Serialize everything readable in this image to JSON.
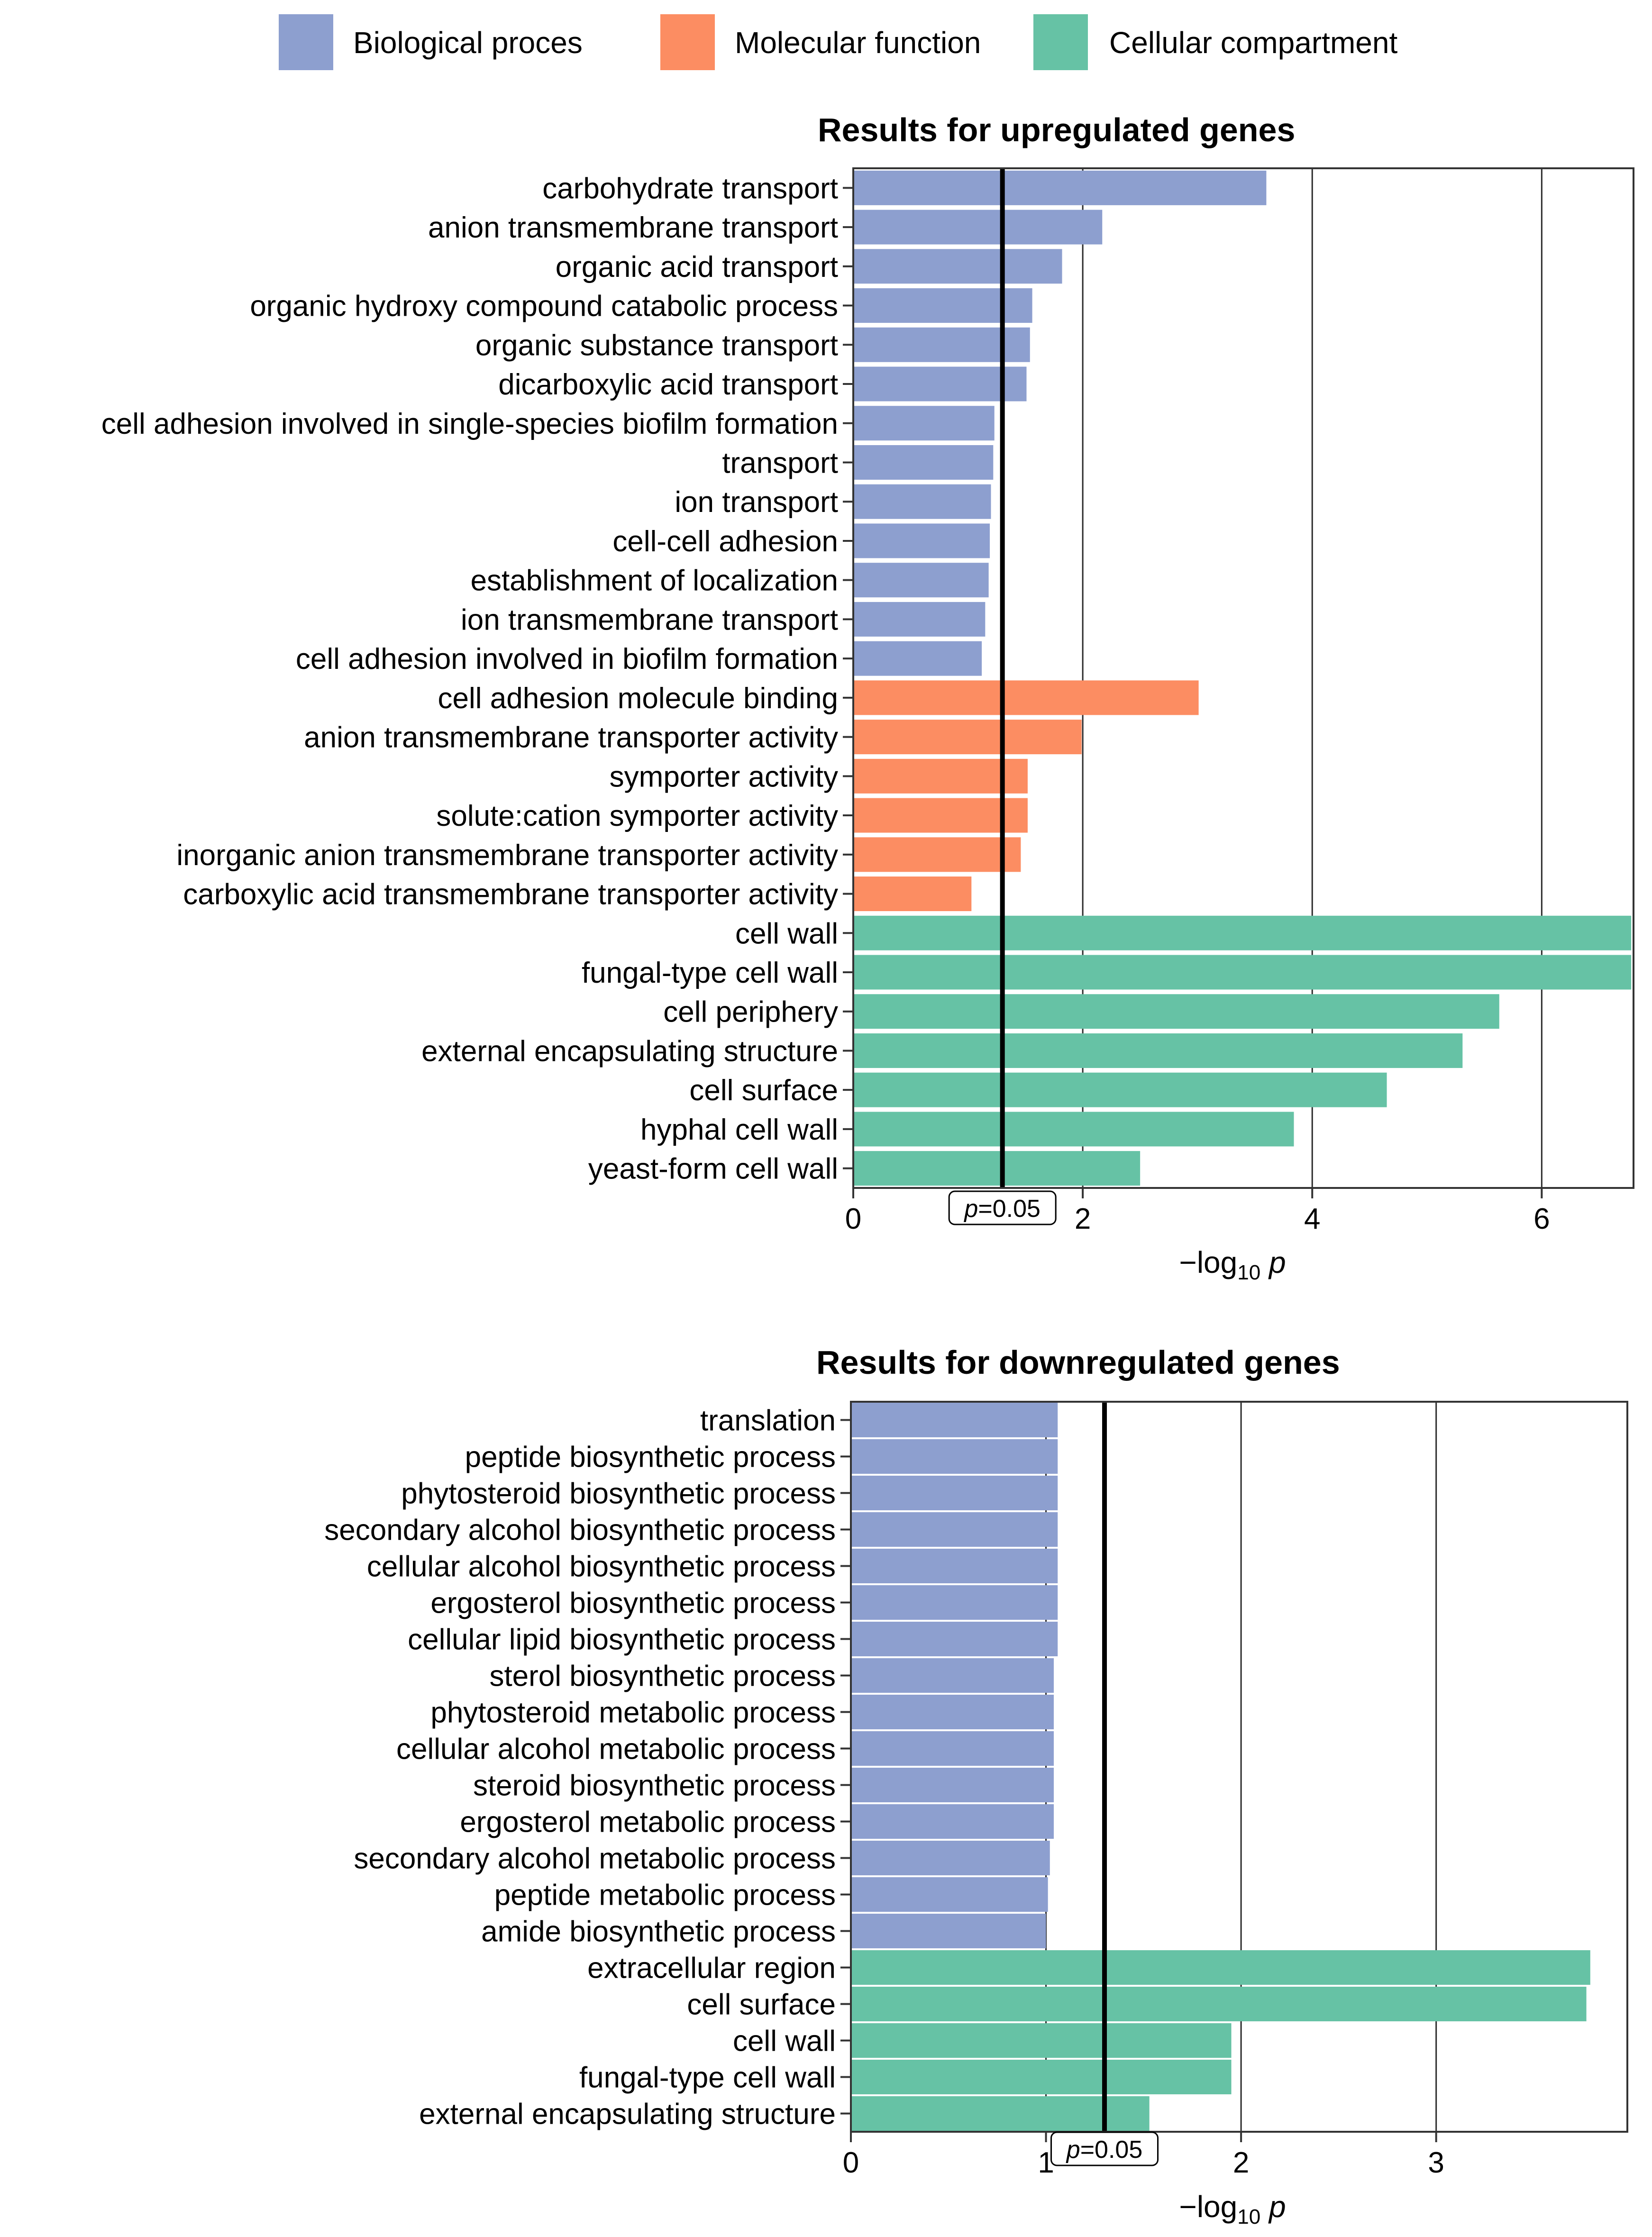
{
  "colors": {
    "Biological proces": "#8D9FCF",
    "Molecular function": "#FC8D62",
    "Cellular compartment": "#66C2A5"
  },
  "legend": [
    {
      "label": "Biological proces",
      "color": "#8D9FCF"
    },
    {
      "label": "Molecular function",
      "color": "#FC8D62"
    },
    {
      "label": "Cellular compartment",
      "color": "#66C2A5"
    }
  ],
  "chart_data": [
    {
      "type": "bar",
      "orientation": "horizontal",
      "title": "Results for upregulated genes",
      "xlabel": {
        "prefix": "−log",
        "subscript": "10",
        "suffix": " p"
      },
      "xlim": [
        0,
        6.8
      ],
      "xticks": [
        0,
        2,
        4,
        6
      ],
      "threshold": {
        "value": 1.3,
        "label_var": "p",
        "label_rest": "=0.05"
      },
      "categories": [
        "carbohydrate transport",
        "anion transmembrane transport",
        "organic acid transport",
        "organic hydroxy compound catabolic process",
        "organic substance transport",
        "dicarboxylic acid transport",
        "cell adhesion involved in single-species biofilm formation",
        "transport",
        "ion transport",
        "cell-cell adhesion",
        "establishment of localization",
        "ion transmembrane transport",
        "cell adhesion involved in biofilm formation",
        "cell adhesion molecule binding",
        "anion transmembrane transporter activity",
        "symporter activity",
        "solute:cation symporter activity",
        "inorganic anion transmembrane transporter activity",
        "carboxylic acid transmembrane transporter activity",
        "cell wall",
        "fungal-type cell wall",
        "cell periphery",
        "external encapsulating structure",
        "cell surface",
        "hyphal cell wall",
        "yeast-form cell wall"
      ],
      "values": [
        3.6,
        2.17,
        1.82,
        1.56,
        1.54,
        1.51,
        1.23,
        1.22,
        1.2,
        1.19,
        1.18,
        1.15,
        1.12,
        3.01,
        1.99,
        1.52,
        1.52,
        1.46,
        1.03,
        6.78,
        6.78,
        5.63,
        5.31,
        4.65,
        3.84,
        2.5
      ],
      "groups": [
        "Biological proces",
        "Biological proces",
        "Biological proces",
        "Biological proces",
        "Biological proces",
        "Biological proces",
        "Biological proces",
        "Biological proces",
        "Biological proces",
        "Biological proces",
        "Biological proces",
        "Biological proces",
        "Biological proces",
        "Molecular function",
        "Molecular function",
        "Molecular function",
        "Molecular function",
        "Molecular function",
        "Molecular function",
        "Cellular compartment",
        "Cellular compartment",
        "Cellular compartment",
        "Cellular compartment",
        "Cellular compartment",
        "Cellular compartment",
        "Cellular compartment"
      ]
    },
    {
      "type": "bar",
      "orientation": "horizontal",
      "title": "Results for downregulated genes",
      "xlabel": {
        "prefix": "−log",
        "subscript": "10",
        "suffix": " p"
      },
      "xlim": [
        0,
        3.98
      ],
      "xticks": [
        0,
        1,
        2,
        3
      ],
      "threshold": {
        "value": 1.3,
        "label_var": "p",
        "label_rest": "=0.05"
      },
      "categories": [
        "translation",
        "peptide biosynthetic process",
        "phytosteroid biosynthetic process",
        "secondary alcohol biosynthetic process",
        "cellular alcohol biosynthetic process",
        "ergosterol biosynthetic process",
        "cellular lipid biosynthetic process",
        "sterol biosynthetic process",
        "phytosteroid metabolic process",
        "cellular alcohol metabolic process",
        "steroid biosynthetic process",
        "ergosterol metabolic process",
        "secondary alcohol metabolic process",
        "peptide metabolic process",
        "amide biosynthetic process",
        "extracellular region",
        "cell surface",
        "cell wall",
        "fungal-type cell wall",
        "external encapsulating structure"
      ],
      "values": [
        1.06,
        1.06,
        1.06,
        1.06,
        1.06,
        1.06,
        1.06,
        1.04,
        1.04,
        1.04,
        1.04,
        1.04,
        1.02,
        1.01,
        1.0,
        3.79,
        3.77,
        1.95,
        1.95,
        1.53
      ],
      "groups": [
        "Biological proces",
        "Biological proces",
        "Biological proces",
        "Biological proces",
        "Biological proces",
        "Biological proces",
        "Biological proces",
        "Biological proces",
        "Biological proces",
        "Biological proces",
        "Biological proces",
        "Biological proces",
        "Biological proces",
        "Biological proces",
        "Biological proces",
        "Cellular compartment",
        "Cellular compartment",
        "Cellular compartment",
        "Cellular compartment",
        "Cellular compartment"
      ]
    }
  ]
}
